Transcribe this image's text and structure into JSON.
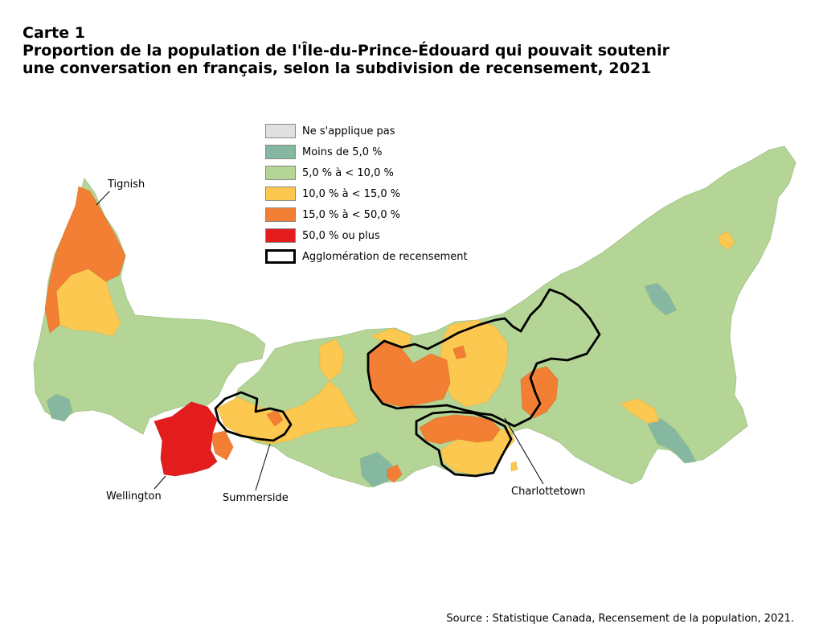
{
  "title": {
    "line1": "Carte 1",
    "line2": "Proportion de la population de l'Île-du-Prince-Édouard qui pouvait soutenir",
    "line3": "une conversation en français, selon la subdivision de recensement, 2021"
  },
  "legend": {
    "items": [
      {
        "label": "Ne s'applique pas",
        "color": "#e0e0e0"
      },
      {
        "label": "Moins de 5,0 %",
        "color": "#86b7a0"
      },
      {
        "label": "5,0 % à < 10,0 %",
        "color": "#b4d596"
      },
      {
        "label": "10,0 % à < 15,0 %",
        "color": "#fcc850"
      },
      {
        "label": "15,0 % à < 50,0 %",
        "color": "#f37f34"
      },
      {
        "label": "50,0 % ou plus",
        "color": "#e31d1d"
      }
    ],
    "boundary_label": "Agglomération de recensement"
  },
  "places": {
    "tignish": "Tignish",
    "wellington": "Wellington",
    "summerside": "Summerside",
    "charlottetown": "Charlottetown"
  },
  "source": "Source : Statistique Canada, Recensement de la population, 2021."
}
